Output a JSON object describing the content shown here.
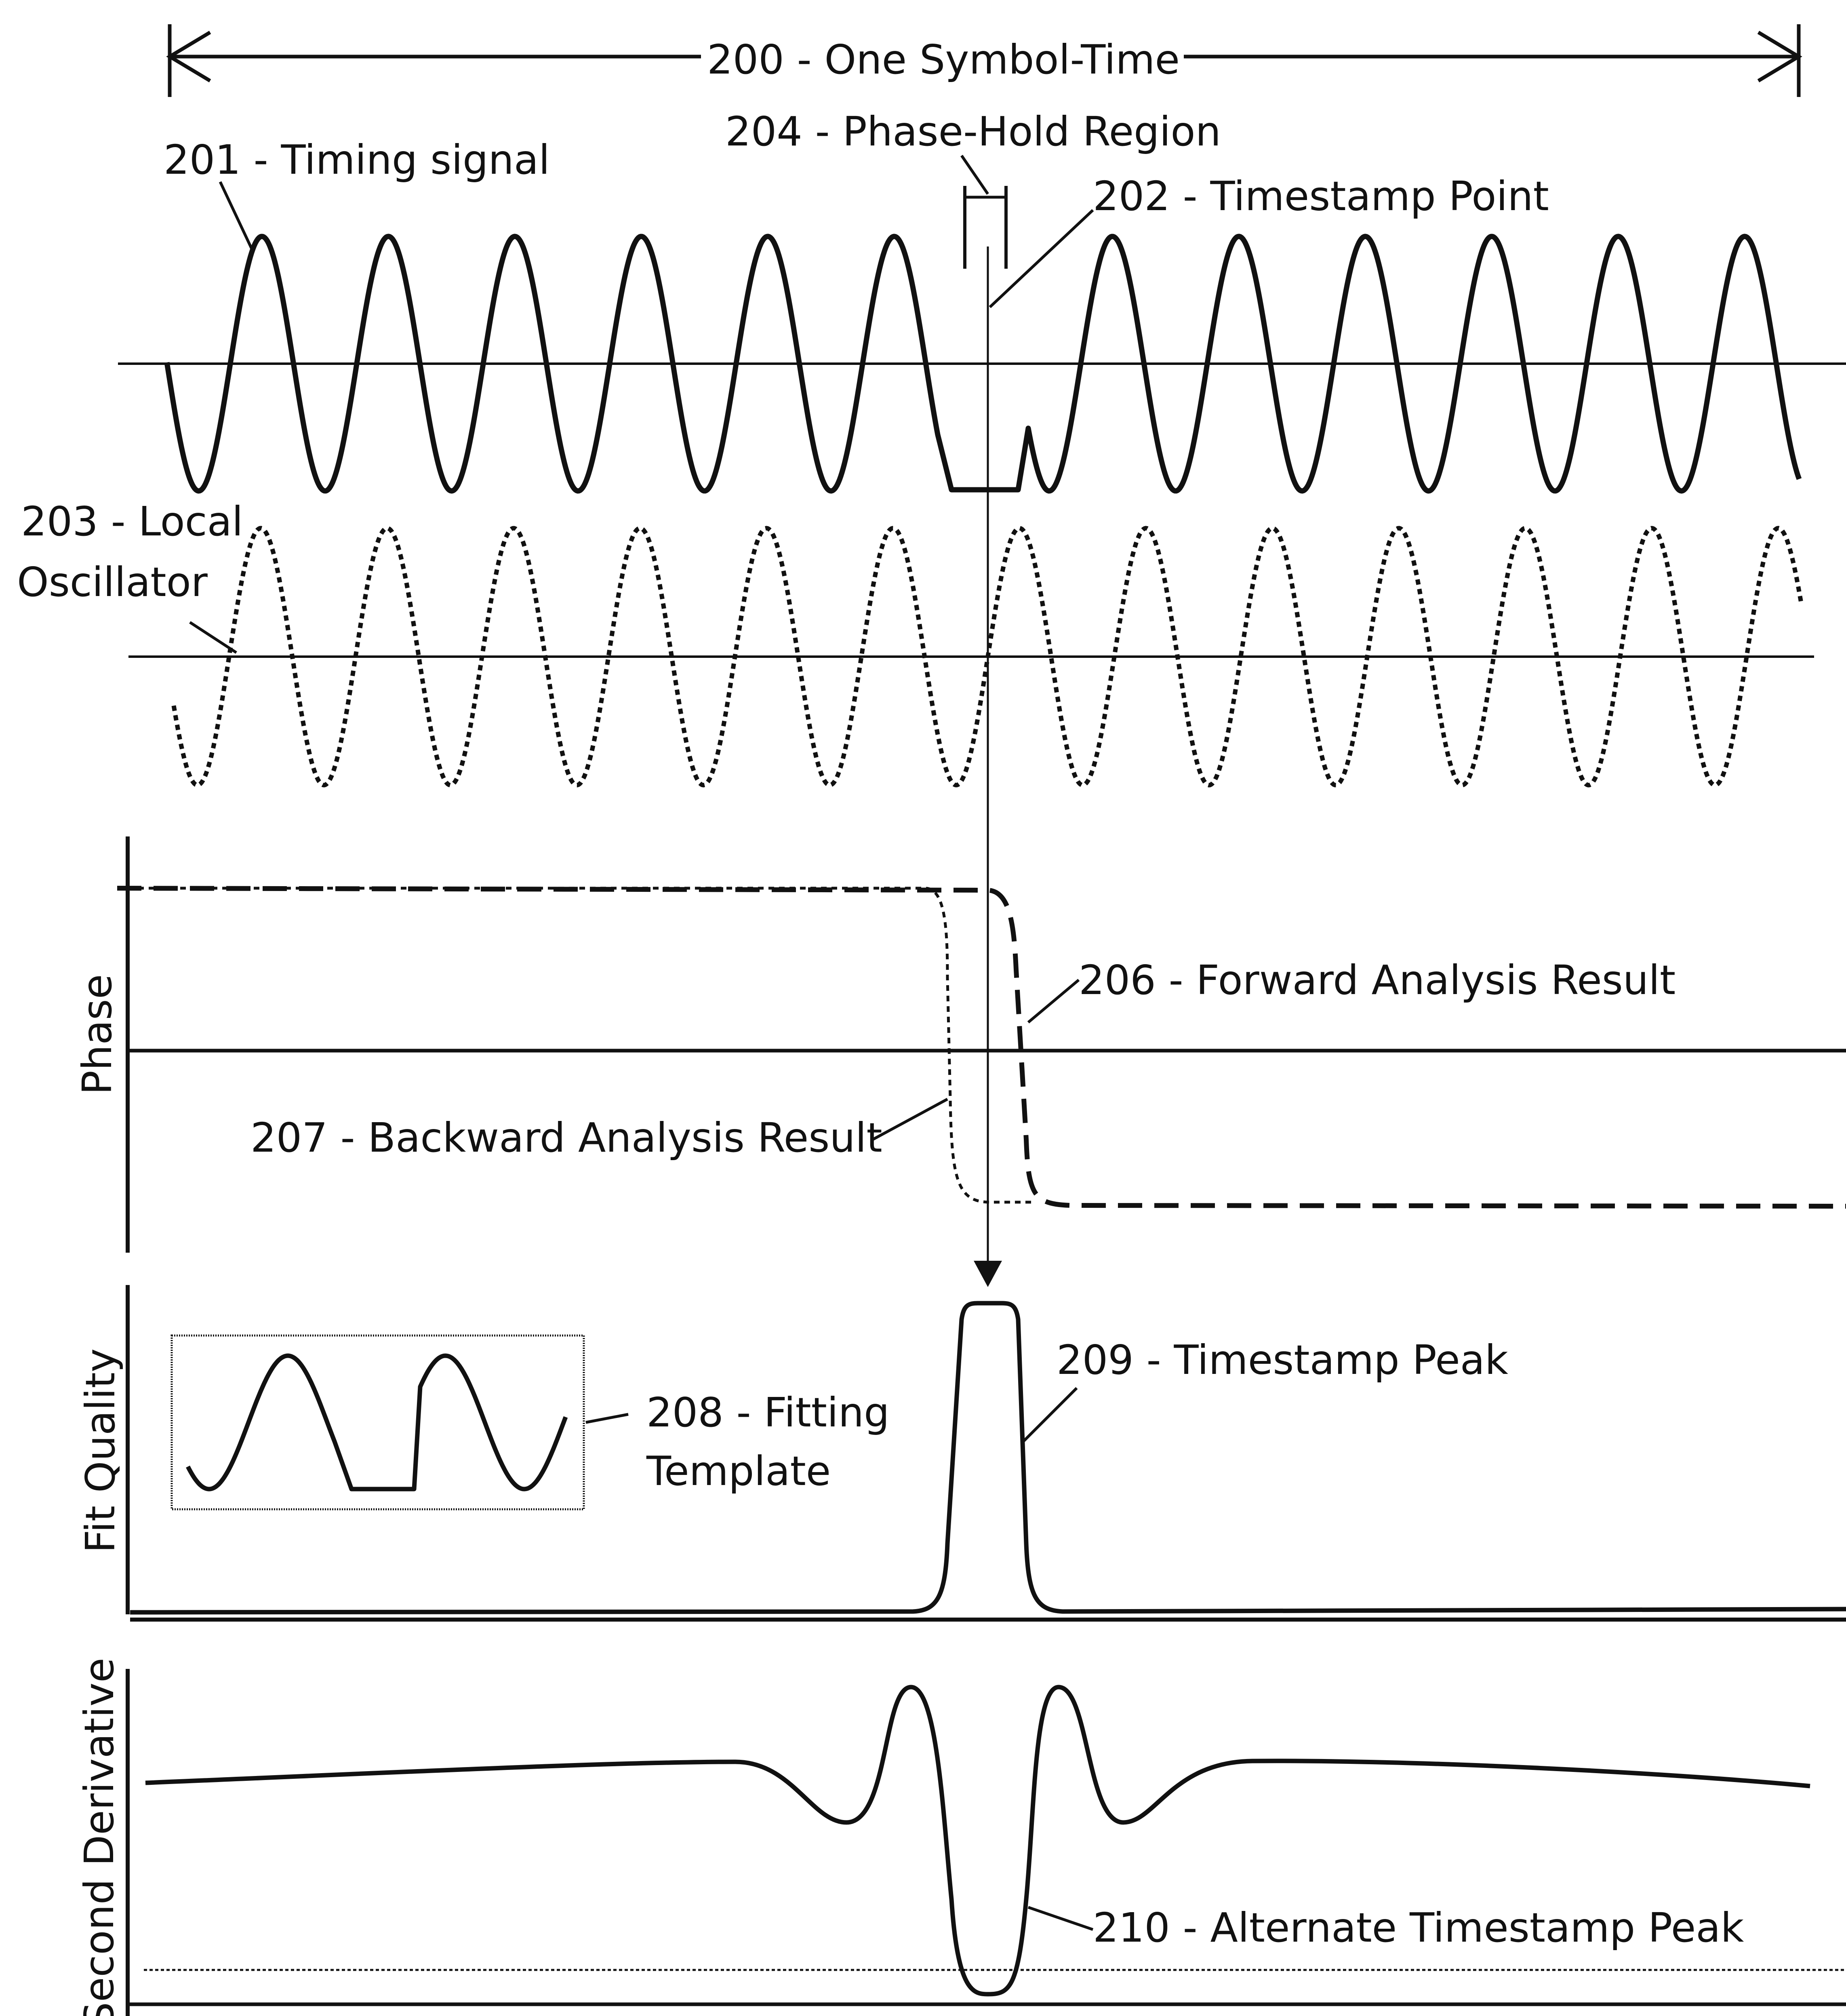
{
  "labels": {
    "symbol_time": "200 - One Symbol-Time",
    "timing_signal": "201 - Timing signal",
    "timestamp_point": "202 - Timestamp Point",
    "local_osc_line1": "203 - Local",
    "local_osc_line2": "Oscillator",
    "phase_hold": "204 - Phase-Hold Region",
    "forward": "206 - Forward Analysis Result",
    "backward": "207 - Backward Analysis Result",
    "template_line1": "208 - Fitting",
    "template_line2": "Template",
    "ts_peak": "209 - Timestamp Peak",
    "alt_peak": "210 - Alternate Timestamp Peak"
  },
  "axes": {
    "phase": "Phase",
    "fit_quality": "Fit Quality",
    "second_derivative": "Second Derivative"
  },
  "colors": {
    "ink": "#111111",
    "background": "#ffffff"
  }
}
